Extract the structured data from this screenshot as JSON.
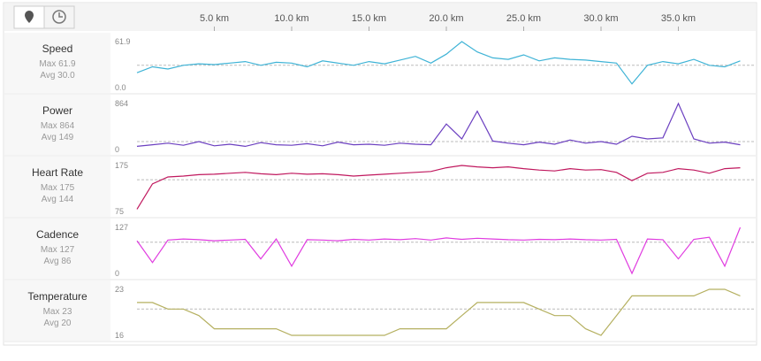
{
  "xlim": [
    0,
    40
  ],
  "xticks": [
    {
      "value": 5,
      "label": "5.0 km"
    },
    {
      "value": 10,
      "label": "10.0 km"
    },
    {
      "value": 15,
      "label": "15.0 km"
    },
    {
      "value": 20,
      "label": "20.0 km"
    },
    {
      "value": 25,
      "label": "25.0 km"
    },
    {
      "value": 30,
      "label": "30.0 km"
    },
    {
      "value": 35,
      "label": "35.0 km"
    }
  ],
  "chart_data": [
    {
      "type": "line",
      "title": "Speed",
      "color": "#3eb3d6",
      "stats": [
        {
          "value": 61.9,
          "label": "Max 61.9"
        },
        {
          "value": 30.0,
          "label": "Avg 30.0"
        }
      ],
      "ylim": [
        0,
        61.9
      ],
      "yticks": [
        61.9,
        {
          "value": 0,
          "label": "0.0"
        }
      ],
      "x": [
        0,
        1,
        2,
        3,
        4,
        5,
        6,
        7,
        8,
        9,
        10,
        11,
        12,
        13,
        14,
        15,
        16,
        17,
        18,
        19,
        20,
        21,
        22,
        23,
        24,
        25,
        26,
        27,
        28,
        29,
        30,
        31,
        32,
        33,
        34,
        35,
        36,
        37,
        38,
        39
      ],
      "values": [
        20,
        28,
        25,
        30,
        32,
        31,
        33,
        35,
        30,
        34,
        33,
        28,
        36,
        33,
        30,
        35,
        32,
        37,
        42,
        33,
        45,
        61.9,
        48,
        40,
        38,
        44,
        36,
        40,
        38,
        37,
        35,
        33,
        5,
        30,
        35,
        32,
        38,
        30,
        28,
        36
      ]
    },
    {
      "type": "line",
      "title": "Power",
      "color": "#6b3fc0",
      "stats": [
        {
          "value": 864,
          "label": "Max 864"
        },
        {
          "value": 149,
          "label": "Avg 149"
        }
      ],
      "ylim": [
        0,
        864
      ],
      "yticks": [
        864,
        0
      ],
      "x": [
        0,
        1,
        2,
        3,
        4,
        5,
        6,
        7,
        8,
        9,
        10,
        11,
        12,
        13,
        14,
        15,
        16,
        17,
        18,
        19,
        20,
        21,
        22,
        23,
        24,
        25,
        26,
        27,
        28,
        29,
        30,
        31,
        32,
        33,
        34,
        35,
        36,
        37,
        38,
        39
      ],
      "values": [
        60,
        90,
        120,
        80,
        150,
        70,
        100,
        60,
        130,
        90,
        80,
        110,
        70,
        140,
        90,
        100,
        80,
        120,
        100,
        90,
        480,
        200,
        720,
        160,
        120,
        90,
        140,
        100,
        180,
        120,
        150,
        100,
        250,
        200,
        220,
        864,
        200,
        120,
        140,
        90
      ]
    },
    {
      "type": "line",
      "title": "Heart Rate",
      "color": "#c0185e",
      "stats": [
        {
          "value": 175,
          "label": "Max 175"
        },
        {
          "value": 144,
          "label": "Avg 144"
        }
      ],
      "ylim": [
        75,
        175
      ],
      "yticks": [
        175,
        75
      ],
      "x": [
        0,
        1,
        2,
        3,
        4,
        5,
        6,
        7,
        8,
        9,
        10,
        11,
        12,
        13,
        14,
        15,
        16,
        17,
        18,
        19,
        20,
        21,
        22,
        23,
        24,
        25,
        26,
        27,
        28,
        29,
        30,
        31,
        32,
        33,
        34,
        35,
        36,
        37,
        38,
        39
      ],
      "values": [
        80,
        135,
        150,
        152,
        155,
        156,
        158,
        160,
        157,
        155,
        158,
        156,
        157,
        155,
        152,
        154,
        156,
        158,
        160,
        162,
        170,
        175,
        172,
        170,
        172,
        168,
        165,
        163,
        168,
        165,
        166,
        160,
        142,
        158,
        160,
        168,
        165,
        158,
        168,
        170
      ]
    },
    {
      "type": "line",
      "title": "Cadence",
      "color": "#e03ce0",
      "stats": [
        {
          "value": 127,
          "label": "Max 127"
        },
        {
          "value": 86,
          "label": "Avg 86"
        }
      ],
      "ylim": [
        0,
        127
      ],
      "yticks": [
        127,
        0
      ],
      "x": [
        0,
        1,
        2,
        3,
        4,
        5,
        6,
        7,
        8,
        9,
        10,
        11,
        12,
        13,
        14,
        15,
        16,
        17,
        18,
        19,
        20,
        21,
        22,
        23,
        24,
        25,
        26,
        27,
        28,
        29,
        30,
        31,
        32,
        33,
        34,
        35,
        36,
        37,
        38,
        39
      ],
      "values": [
        90,
        30,
        92,
        95,
        93,
        90,
        92,
        94,
        40,
        95,
        20,
        93,
        92,
        90,
        94,
        92,
        95,
        93,
        96,
        92,
        98,
        94,
        97,
        95,
        93,
        92,
        94,
        93,
        95,
        93,
        92,
        94,
        0,
        95,
        93,
        40,
        94,
        100,
        20,
        127
      ]
    },
    {
      "type": "line",
      "title": "Temperature",
      "color": "#b5b060",
      "stats": [
        {
          "value": 23,
          "label": "Max 23"
        },
        {
          "value": 20,
          "label": "Avg 20"
        }
      ],
      "ylim": [
        16,
        23
      ],
      "yticks": [
        23,
        16
      ],
      "x": [
        0,
        1,
        2,
        3,
        4,
        5,
        6,
        7,
        8,
        9,
        10,
        11,
        12,
        13,
        14,
        15,
        16,
        17,
        18,
        19,
        20,
        21,
        22,
        23,
        24,
        25,
        26,
        27,
        28,
        29,
        30,
        31,
        32,
        33,
        34,
        35,
        36,
        37,
        38,
        39
      ],
      "values": [
        21,
        21,
        20,
        20,
        19,
        17,
        17,
        17,
        17,
        17,
        16,
        16,
        16,
        16,
        16,
        16,
        16,
        17,
        17,
        17,
        17,
        19,
        21,
        21,
        21,
        21,
        20,
        19,
        19,
        17,
        16,
        19,
        22,
        22,
        22,
        22,
        22,
        23,
        23,
        22
      ]
    }
  ]
}
